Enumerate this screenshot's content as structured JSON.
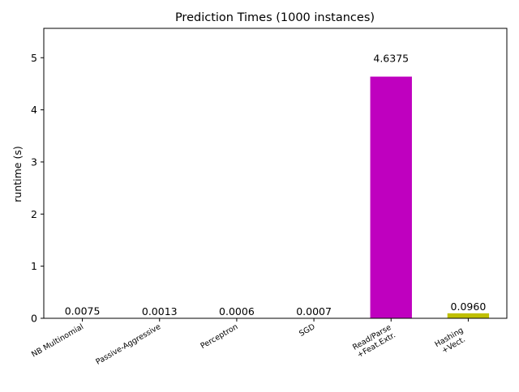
{
  "chart_data": {
    "type": "bar",
    "title": "Prediction Times (1000 instances)",
    "xlabel": "",
    "ylabel": "runtime (s)",
    "ylim": [
      0,
      5.5636
    ],
    "yticks": [
      0,
      1,
      2,
      3,
      4,
      5
    ],
    "categories": [
      [
        "NB Multinomial"
      ],
      [
        "Passive-Aggressive"
      ],
      [
        "Perceptron"
      ],
      [
        "SGD"
      ],
      [
        "Read/Parse",
        "+Feat.Extr."
      ],
      [
        "Hashing",
        "+Vect."
      ]
    ],
    "values": [
      0.0075,
      0.0013,
      0.0006,
      0.0007,
      4.6375,
      0.096
    ],
    "value_labels": [
      "0.0075",
      "0.0013",
      "0.0006",
      "0.0007",
      "4.6375",
      "0.0960"
    ],
    "colors": [
      "#1f77b4",
      "#2ca02c",
      "#d62728",
      "#00bfbf",
      "#bf00bf",
      "#bfbf00"
    ],
    "x_tick_rotation_deg": 30,
    "grid": false,
    "legend": "none"
  }
}
